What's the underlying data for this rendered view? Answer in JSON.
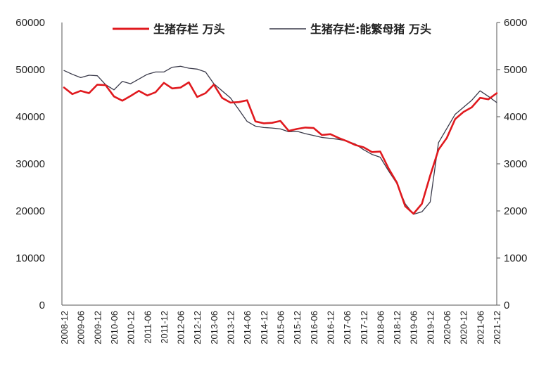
{
  "chart_data": {
    "type": "line",
    "title": "",
    "xlabel": "",
    "ylabel_left": "",
    "ylabel_right": "",
    "x_tick_labels": [
      "2008-12",
      "2009-06",
      "2009-12",
      "2010-06",
      "2010-12",
      "2011-06",
      "2011-12",
      "2012-06",
      "2012-12",
      "2013-06",
      "2013-12",
      "2014-06",
      "2014-12",
      "2015-06",
      "2015-12",
      "2016-06",
      "2016-12",
      "2017-06",
      "2017-12",
      "2018-06",
      "2018-12",
      "2019-06",
      "2019-12",
      "2020-06",
      "2020-12",
      "2021-06",
      "2021-12"
    ],
    "y_left": {
      "ticks": [
        0,
        10000,
        20000,
        30000,
        40000,
        50000,
        60000
      ],
      "ylim": [
        0,
        60000
      ]
    },
    "y_right": {
      "ticks": [
        0,
        1000,
        2000,
        3000,
        4000,
        5000,
        6000
      ],
      "ylim": [
        0,
        6000
      ]
    },
    "grid": false,
    "legend_position": "top",
    "x": [
      "2008-12",
      "2009-03",
      "2009-06",
      "2009-09",
      "2009-12",
      "2010-03",
      "2010-06",
      "2010-09",
      "2010-12",
      "2011-03",
      "2011-06",
      "2011-09",
      "2011-12",
      "2012-03",
      "2012-06",
      "2012-09",
      "2012-12",
      "2013-03",
      "2013-06",
      "2013-09",
      "2013-12",
      "2014-03",
      "2014-06",
      "2014-09",
      "2014-12",
      "2015-03",
      "2015-06",
      "2015-09",
      "2015-12",
      "2016-03",
      "2016-06",
      "2016-09",
      "2016-12",
      "2017-03",
      "2017-06",
      "2017-09",
      "2017-12",
      "2018-03",
      "2018-06",
      "2018-09",
      "2018-12",
      "2019-03",
      "2019-06",
      "2019-09",
      "2019-12",
      "2020-03",
      "2020-06",
      "2020-09",
      "2020-12",
      "2021-03",
      "2021-06",
      "2021-09",
      "2021-12"
    ],
    "series": [
      {
        "name": "生猪存栏 万头",
        "axis": "left",
        "color": "#e0191e",
        "values": [
          46200,
          44800,
          45500,
          45000,
          46800,
          46700,
          44300,
          43400,
          44400,
          45500,
          44500,
          45200,
          47200,
          46000,
          46200,
          47300,
          44200,
          45000,
          46800,
          44000,
          43000,
          43100,
          43500,
          39000,
          38600,
          38700,
          39100,
          37000,
          37400,
          37700,
          37600,
          36100,
          36300,
          35500,
          34800,
          34000,
          33500,
          32500,
          32600,
          29000,
          26000,
          21000,
          19400,
          21500,
          27500,
          33000,
          35500,
          39500,
          41000,
          42000,
          44000,
          43700,
          45000
        ]
      },
      {
        "name": "生猪存栏:能繁母猪 万头",
        "axis": "right",
        "color": "#3a3a4a",
        "values": [
          4980,
          4900,
          4830,
          4880,
          4870,
          4680,
          4570,
          4750,
          4700,
          4800,
          4900,
          4950,
          4950,
          5050,
          5070,
          5030,
          5010,
          4950,
          4700,
          4550,
          4400,
          4150,
          3900,
          3800,
          3770,
          3760,
          3740,
          3680,
          3690,
          3640,
          3600,
          3560,
          3540,
          3520,
          3480,
          3420,
          3300,
          3200,
          3140,
          2850,
          2580,
          2150,
          1930,
          1980,
          2190,
          3450,
          3750,
          4050,
          4200,
          4350,
          4550,
          4430,
          4300
        ]
      }
    ]
  },
  "legend": {
    "items": [
      {
        "label": "生猪存栏 万头",
        "color": "#e0191e"
      },
      {
        "label": "生猪存栏:能繁母猪 万头",
        "color": "#3a3a4a"
      }
    ]
  }
}
